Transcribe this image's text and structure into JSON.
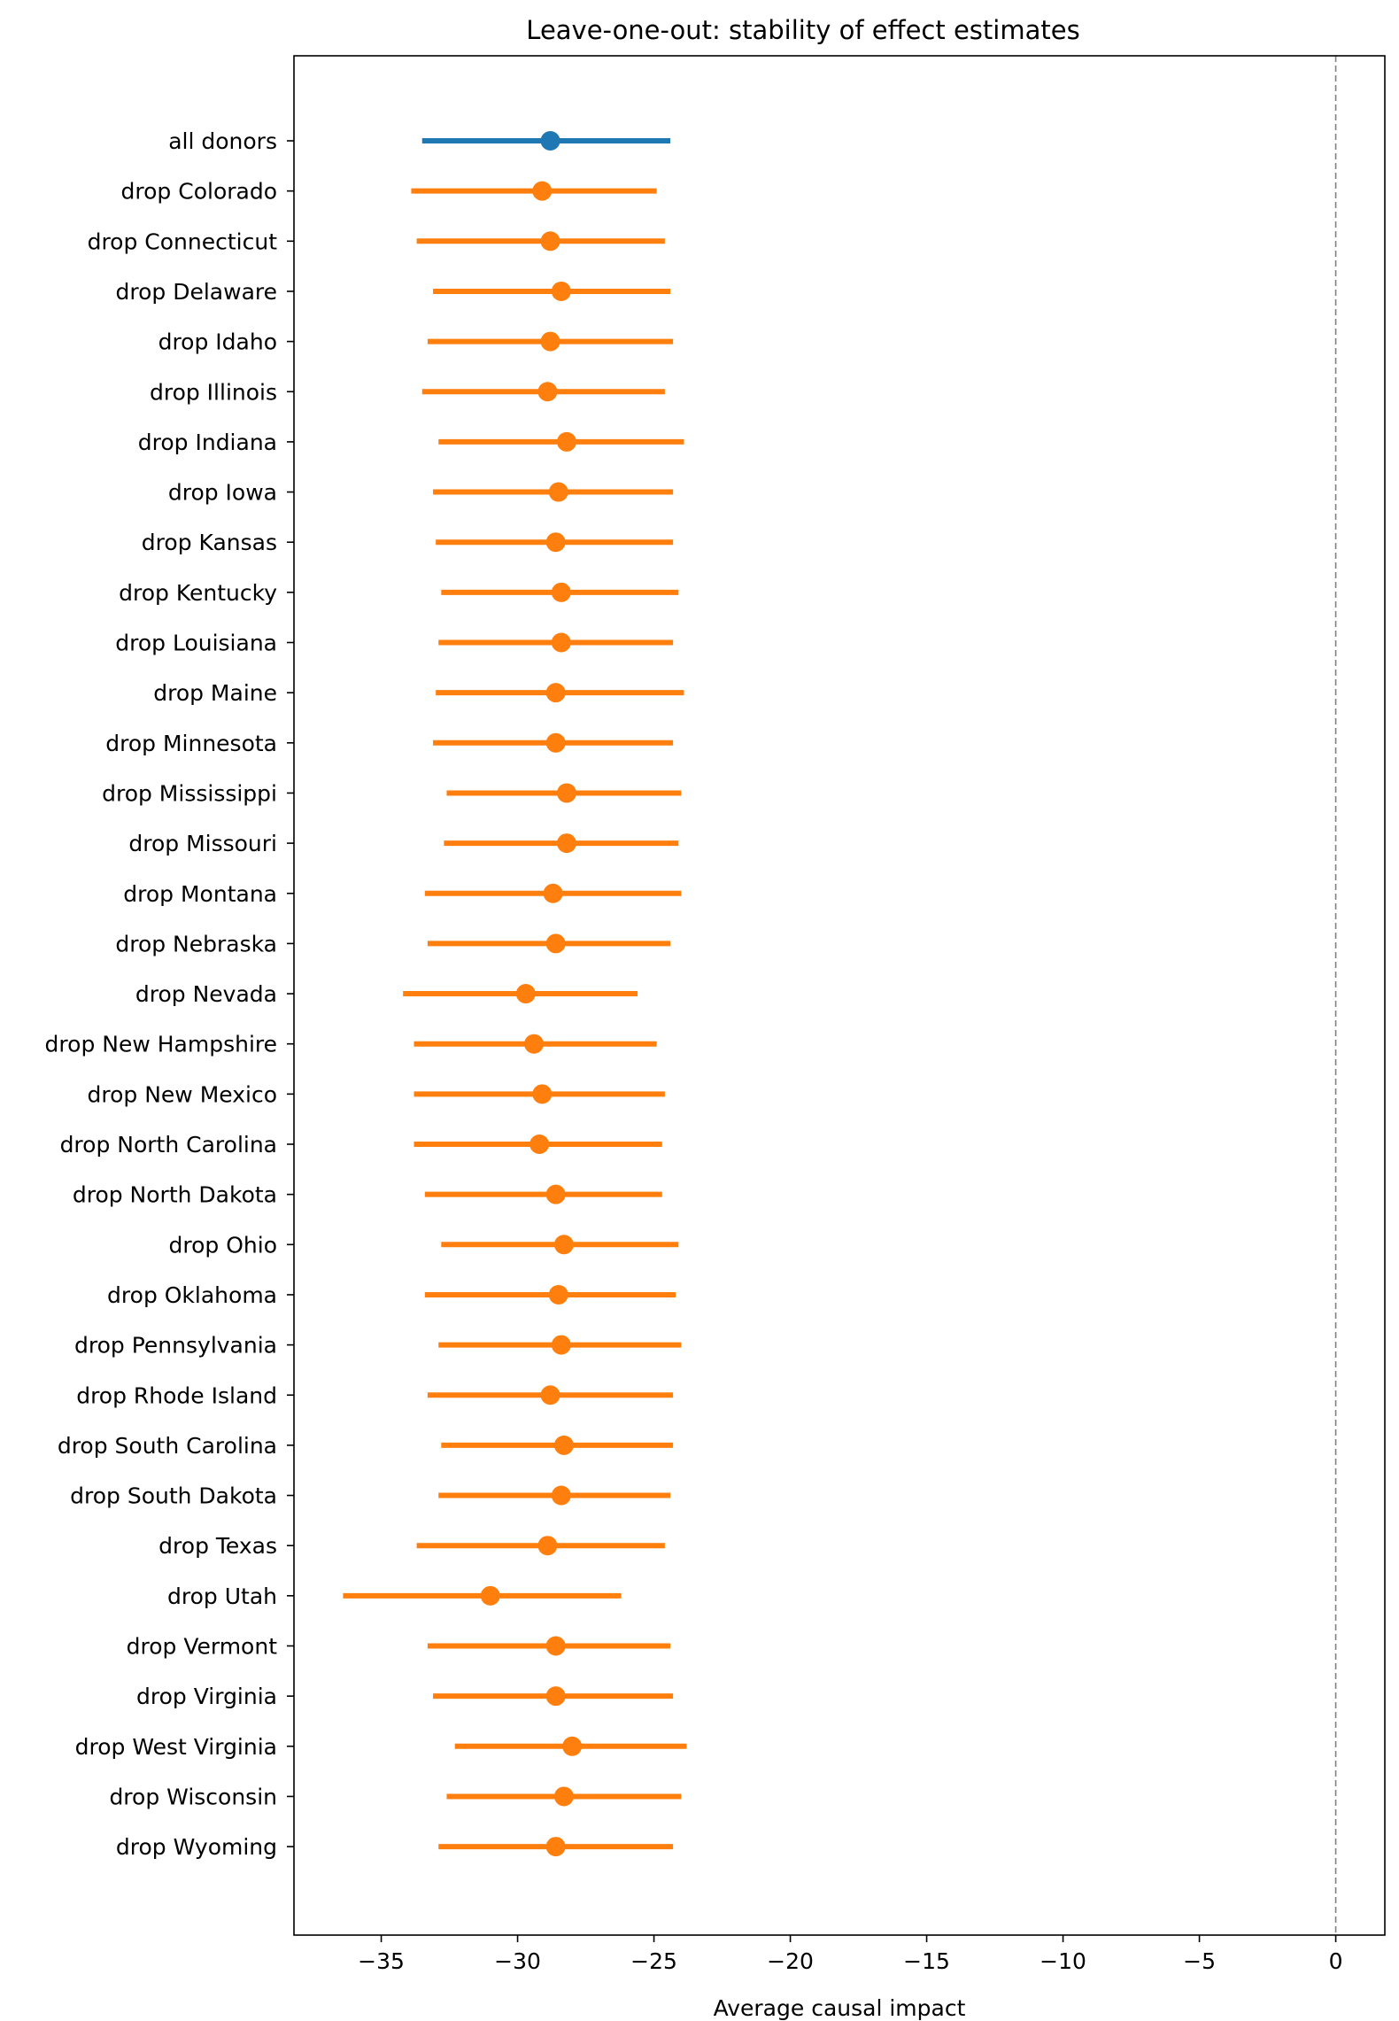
{
  "chart_data": {
    "type": "scatter",
    "subtype": "forest-plot with horizontal error bars",
    "title": "Leave-one-out: stability of effect estimates",
    "xlabel": "Average causal impact",
    "ylabel": "",
    "xlim": [
      -38.2,
      1.8
    ],
    "xticks": [
      -35,
      -30,
      -25,
      -20,
      -15,
      -10,
      -5,
      0
    ],
    "xtick_labels": [
      "−35",
      "−30",
      "−25",
      "−20",
      "−15",
      "−10",
      "−5",
      "0"
    ],
    "reference_line": {
      "x": 0,
      "style": "dashed",
      "color": "#808080"
    },
    "grid": false,
    "legend": "none",
    "colors": {
      "baseline": "#1f77b4",
      "leave_one_out": "#ff7f0e"
    },
    "categories": [
      "all donors",
      "drop Colorado",
      "drop Connecticut",
      "drop Delaware",
      "drop Idaho",
      "drop Illinois",
      "drop Indiana",
      "drop Iowa",
      "drop Kansas",
      "drop Kentucky",
      "drop Louisiana",
      "drop Maine",
      "drop Minnesota",
      "drop Mississippi",
      "drop Missouri",
      "drop Montana",
      "drop Nebraska",
      "drop Nevada",
      "drop New Hampshire",
      "drop New Mexico",
      "drop North Carolina",
      "drop North Dakota",
      "drop Ohio",
      "drop Oklahoma",
      "drop Pennsylvania",
      "drop Rhode Island",
      "drop South Carolina",
      "drop South Dakota",
      "drop Texas",
      "drop Utah",
      "drop Vermont",
      "drop Virginia",
      "drop West Virginia",
      "drop Wisconsin",
      "drop Wyoming"
    ],
    "estimates": [
      -28.8,
      -29.1,
      -28.8,
      -28.4,
      -28.8,
      -28.9,
      -28.2,
      -28.5,
      -28.6,
      -28.4,
      -28.4,
      -28.6,
      -28.6,
      -28.2,
      -28.2,
      -28.7,
      -28.6,
      -29.7,
      -29.4,
      -29.1,
      -29.2,
      -28.6,
      -28.3,
      -28.5,
      -28.4,
      -28.8,
      -28.3,
      -28.4,
      -28.9,
      -31.0,
      -28.6,
      -28.6,
      -28.0,
      -28.3,
      -28.6
    ],
    "ci_low": [
      -33.5,
      -33.9,
      -33.7,
      -33.1,
      -33.3,
      -33.5,
      -32.9,
      -33.1,
      -33.0,
      -32.8,
      -32.9,
      -33.0,
      -33.1,
      -32.6,
      -32.7,
      -33.4,
      -33.3,
      -34.2,
      -33.8,
      -33.8,
      -33.8,
      -33.4,
      -32.8,
      -33.4,
      -32.9,
      -33.3,
      -32.8,
      -32.9,
      -33.7,
      -36.4,
      -33.3,
      -33.1,
      -32.3,
      -32.6,
      -32.9
    ],
    "ci_high": [
      -24.4,
      -24.9,
      -24.6,
      -24.4,
      -24.3,
      -24.6,
      -23.9,
      -24.3,
      -24.3,
      -24.1,
      -24.3,
      -23.9,
      -24.3,
      -24.0,
      -24.1,
      -24.0,
      -24.4,
      -25.6,
      -24.9,
      -24.6,
      -24.7,
      -24.7,
      -24.1,
      -24.2,
      -24.0,
      -24.3,
      -24.3,
      -24.4,
      -24.6,
      -26.2,
      -24.4,
      -24.3,
      -23.8,
      -24.0,
      -24.3
    ]
  }
}
